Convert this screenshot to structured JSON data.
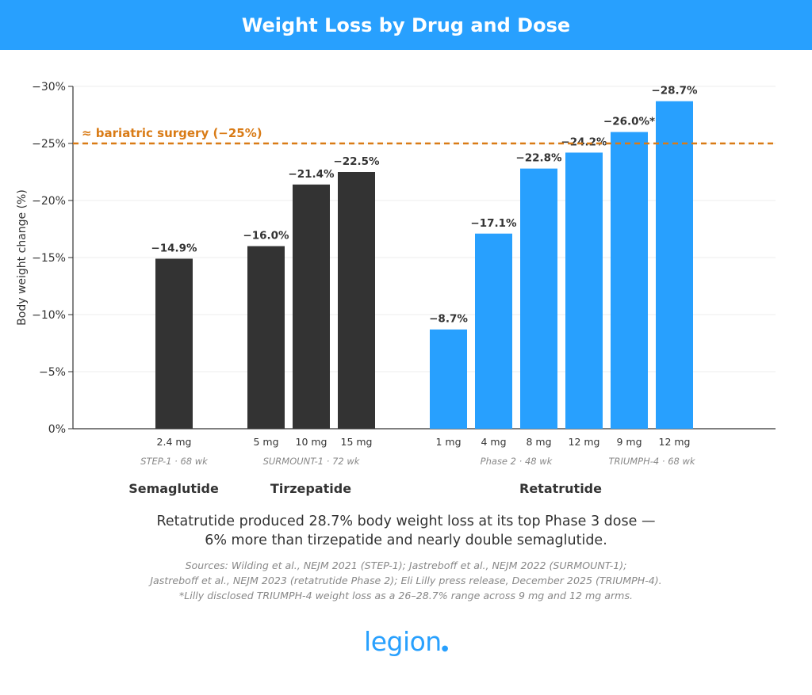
{
  "page": {
    "title": "Weight Loss by Drug and Dose",
    "caption_lines": [
      "Retatrutide produced 28.7% body weight loss at its top Phase 3 dose —",
      "6% more than tirzepatide and nearly double semaglutide."
    ],
    "sources_lines": [
      "Sources: Wilding et al., NEJM 2021 (STEP-1); Jastreboff et al., NEJM 2022 (SURMOUNT-1);",
      "Jastreboff et al., NEJM 2023 (retatrutide Phase 2); Eli Lilly press release, December 2025 (TRIUMPH-4).",
      "*Lilly disclosed TRIUMPH-4 weight loss as a 26–28.7% range across 9 mg and 12 mg arms."
    ],
    "logo_text": "legion",
    "logo_dot": "●"
  },
  "colors": {
    "title_bg": "#28a0fe",
    "dark_bar": "#333333",
    "blue_bar": "#28a0fe",
    "reference_line": "#d97b16"
  },
  "chart_data": {
    "type": "bar",
    "ylabel": "Body weight change (%)",
    "xlabel": "",
    "ylim": [
      0,
      -30
    ],
    "yticks": [
      0,
      -5,
      -10,
      -15,
      -20,
      -25,
      -30
    ],
    "ytick_labels": [
      "0%",
      "−5%",
      "−10%",
      "−15%",
      "−20%",
      "−25%",
      "−30%"
    ],
    "grid": true,
    "reference_line": {
      "value": -25,
      "label": "≈ bariatric surgery (−25%)"
    },
    "groups": [
      {
        "drug": "Semaglutide",
        "color": "dark",
        "bars": [
          {
            "dose": "2.4 mg",
            "value": -14.9,
            "label": "−14.9%"
          }
        ],
        "trials": [
          {
            "label": "STEP-1 · 68 wk",
            "bars": [
              0
            ]
          }
        ]
      },
      {
        "drug": "Tirzepatide",
        "color": "dark",
        "bars": [
          {
            "dose": "5 mg",
            "value": -16.0,
            "label": "−16.0%"
          },
          {
            "dose": "10 mg",
            "value": -21.4,
            "label": "−21.4%"
          },
          {
            "dose": "15 mg",
            "value": -22.5,
            "label": "−22.5%"
          }
        ],
        "trials": [
          {
            "label": "SURMOUNT-1 · 72 wk",
            "bars": [
              0,
              1,
              2
            ]
          }
        ]
      },
      {
        "drug": "Retatrutide",
        "color": "blue",
        "bars": [
          {
            "dose": "1 mg",
            "value": -8.7,
            "label": "−8.7%"
          },
          {
            "dose": "4 mg",
            "value": -17.1,
            "label": "−17.1%"
          },
          {
            "dose": "8 mg",
            "value": -22.8,
            "label": "−22.8%"
          },
          {
            "dose": "12 mg",
            "value": -24.2,
            "label": "−24.2%"
          },
          {
            "dose": "9 mg",
            "value": -26.0,
            "label": "−26.0%*"
          },
          {
            "dose": "12 mg",
            "value": -28.7,
            "label": "−28.7%"
          }
        ],
        "trials": [
          {
            "label": "Phase 2 · 48 wk",
            "bars": [
              0,
              1,
              2,
              3
            ]
          },
          {
            "label": "TRIUMPH-4 · 68 wk",
            "bars": [
              4,
              5
            ]
          }
        ]
      }
    ]
  }
}
